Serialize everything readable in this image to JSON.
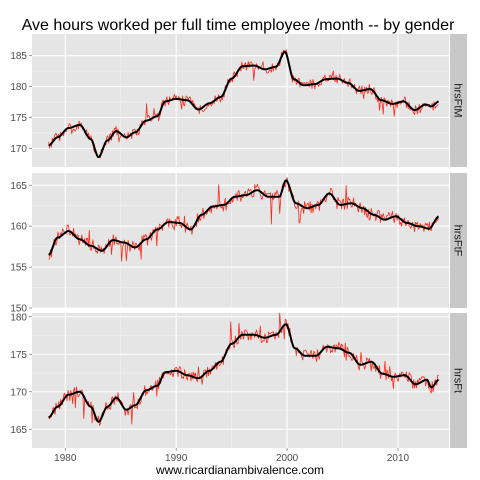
{
  "chart_data": {
    "type": "line",
    "title": "Ave hours worked per full time employee /month -- by gender",
    "xlabel": "www.ricardianambivalence.com",
    "ylabel": "",
    "xlim": [
      1977,
      2014.6
    ],
    "xticks": [
      1980,
      1990,
      2000,
      2010
    ],
    "grid": true,
    "colors": {
      "raw": "#ff2a1a",
      "smooth": "#000000",
      "panel_bg": "#e5e5e5",
      "strip_bg": "#c8c8c8",
      "grid_major": "#ffffff",
      "grid_minor": "#f2f2f2"
    },
    "series_kinds": [
      "raw monthly",
      "smoothed trend"
    ],
    "panels": [
      {
        "strip_label": "hrsFtM",
        "ylim": [
          167,
          188.5
        ],
        "yticks": [
          170,
          175,
          180,
          185
        ],
        "anchors": [
          [
            1978.5,
            170.5
          ],
          [
            1979.3,
            171.8
          ],
          [
            1980.3,
            173.3
          ],
          [
            1981.3,
            173.8
          ],
          [
            1982.3,
            171.5
          ],
          [
            1983.0,
            168.6
          ],
          [
            1983.8,
            171.3
          ],
          [
            1984.6,
            172.8
          ],
          [
            1985.5,
            171.8
          ],
          [
            1986.3,
            172.6
          ],
          [
            1987.3,
            174.5
          ],
          [
            1988.3,
            175.2
          ],
          [
            1989.0,
            177.6
          ],
          [
            1990.0,
            178.0
          ],
          [
            1991.0,
            177.8
          ],
          [
            1992.0,
            176.3
          ],
          [
            1993.0,
            177.3
          ],
          [
            1994.0,
            178.3
          ],
          [
            1995.0,
            181.3
          ],
          [
            1996.0,
            183.3
          ],
          [
            1997.0,
            183.4
          ],
          [
            1998.0,
            182.8
          ],
          [
            1999.0,
            183.2
          ],
          [
            1999.8,
            185.6
          ],
          [
            2000.6,
            181.2
          ],
          [
            2001.5,
            180.2
          ],
          [
            2002.5,
            180.4
          ],
          [
            2003.5,
            181.2
          ],
          [
            2004.5,
            181.3
          ],
          [
            2005.5,
            180.6
          ],
          [
            2006.5,
            179.3
          ],
          [
            2007.5,
            179.6
          ],
          [
            2008.5,
            177.8
          ],
          [
            2009.5,
            177.2
          ],
          [
            2010.5,
            177.6
          ],
          [
            2011.5,
            176.2
          ],
          [
            2012.5,
            177.1
          ],
          [
            2013.0,
            176.8
          ],
          [
            2013.7,
            177.6
          ]
        ]
      },
      {
        "strip_label": "hrsFtF",
        "ylim": [
          150,
          166.5
        ],
        "yticks": [
          150,
          155,
          160,
          165
        ],
        "anchors": [
          [
            1978.5,
            156.5
          ],
          [
            1979.3,
            158.6
          ],
          [
            1980.3,
            159.4
          ],
          [
            1981.3,
            158.4
          ],
          [
            1982.3,
            157.6
          ],
          [
            1983.3,
            157.0
          ],
          [
            1984.3,
            158.3
          ],
          [
            1985.3,
            158.0
          ],
          [
            1986.3,
            157.4
          ],
          [
            1987.3,
            158.4
          ],
          [
            1988.3,
            159.6
          ],
          [
            1989.3,
            160.5
          ],
          [
            1990.3,
            160.4
          ],
          [
            1991.3,
            159.6
          ],
          [
            1992.3,
            161.4
          ],
          [
            1993.3,
            162.4
          ],
          [
            1994.3,
            162.6
          ],
          [
            1995.3,
            163.6
          ],
          [
            1996.3,
            163.8
          ],
          [
            1997.3,
            164.4
          ],
          [
            1998.3,
            163.6
          ],
          [
            1999.3,
            163.6
          ],
          [
            1999.9,
            165.6
          ],
          [
            2000.8,
            162.8
          ],
          [
            2001.8,
            162.2
          ],
          [
            2002.8,
            162.6
          ],
          [
            2003.8,
            164.0
          ],
          [
            2004.8,
            162.6
          ],
          [
            2005.8,
            162.8
          ],
          [
            2006.8,
            162.2
          ],
          [
            2007.8,
            161.4
          ],
          [
            2008.8,
            160.8
          ],
          [
            2009.8,
            161.2
          ],
          [
            2010.8,
            160.4
          ],
          [
            2011.8,
            160.0
          ],
          [
            2012.8,
            159.7
          ],
          [
            2013.7,
            161.2
          ]
        ]
      },
      {
        "strip_label": "hrsFt",
        "ylim": [
          162.5,
          180.5
        ],
        "yticks": [
          165,
          170,
          175,
          180
        ],
        "anchors": [
          [
            1978.5,
            166.6
          ],
          [
            1979.3,
            168.0
          ],
          [
            1980.3,
            169.6
          ],
          [
            1981.3,
            170.0
          ],
          [
            1982.3,
            168.0
          ],
          [
            1983.0,
            166.0
          ],
          [
            1983.8,
            168.0
          ],
          [
            1984.6,
            169.2
          ],
          [
            1985.5,
            167.6
          ],
          [
            1986.3,
            168.2
          ],
          [
            1987.3,
            170.2
          ],
          [
            1988.3,
            170.8
          ],
          [
            1989.0,
            172.6
          ],
          [
            1990.0,
            172.8
          ],
          [
            1991.0,
            172.2
          ],
          [
            1992.0,
            171.8
          ],
          [
            1993.0,
            172.8
          ],
          [
            1994.0,
            174.0
          ],
          [
            1995.0,
            176.4
          ],
          [
            1996.0,
            177.6
          ],
          [
            1997.0,
            177.6
          ],
          [
            1998.0,
            177.2
          ],
          [
            1999.0,
            177.6
          ],
          [
            1999.9,
            179.0
          ],
          [
            2000.7,
            175.8
          ],
          [
            2001.6,
            174.8
          ],
          [
            2002.6,
            174.8
          ],
          [
            2003.6,
            176.0
          ],
          [
            2004.6,
            175.8
          ],
          [
            2005.6,
            175.2
          ],
          [
            2006.6,
            173.6
          ],
          [
            2007.6,
            174.0
          ],
          [
            2008.6,
            172.4
          ],
          [
            2009.6,
            172.0
          ],
          [
            2010.6,
            172.2
          ],
          [
            2011.6,
            171.0
          ],
          [
            2012.6,
            171.6
          ],
          [
            2013.0,
            170.6
          ],
          [
            2013.7,
            171.6
          ]
        ]
      }
    ]
  }
}
